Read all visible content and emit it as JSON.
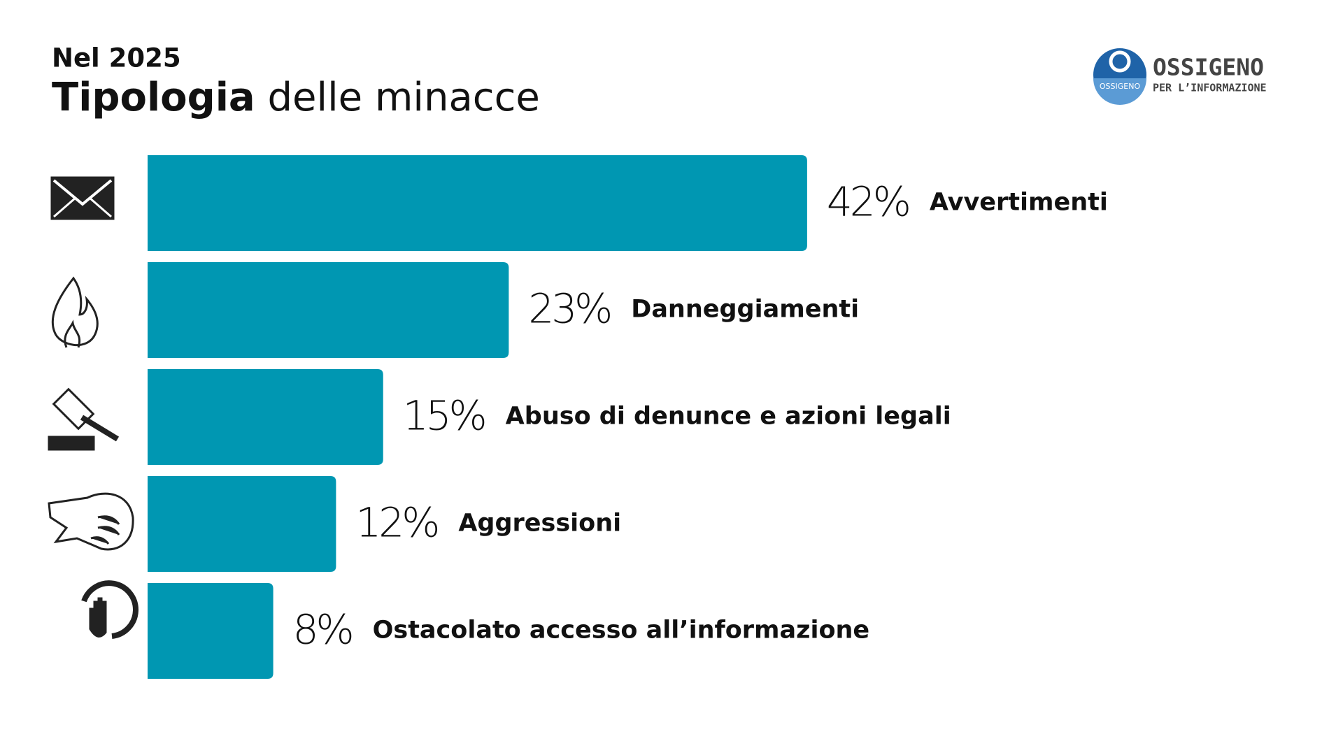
{
  "chart_data": {
    "type": "bar",
    "orientation": "horizontal",
    "subtitle": "Nel 2025",
    "title": "Tipologia delle minacce",
    "categories": [
      "Avvertimenti",
      "Danneggiamenti",
      "Abuso di denunce e azioni legali",
      "Aggressioni",
      "Ostacolato accesso all’informazione"
    ],
    "values": [
      42,
      23,
      15,
      12,
      8
    ],
    "value_labels": [
      "42%",
      "23%",
      "15%",
      "12%",
      "8%"
    ],
    "color": "#0097b2",
    "logo": {
      "name": "OSSIGENO",
      "tagline": "PER L’INFORMAZIONE",
      "badge": "OSSIGENO"
    }
  }
}
